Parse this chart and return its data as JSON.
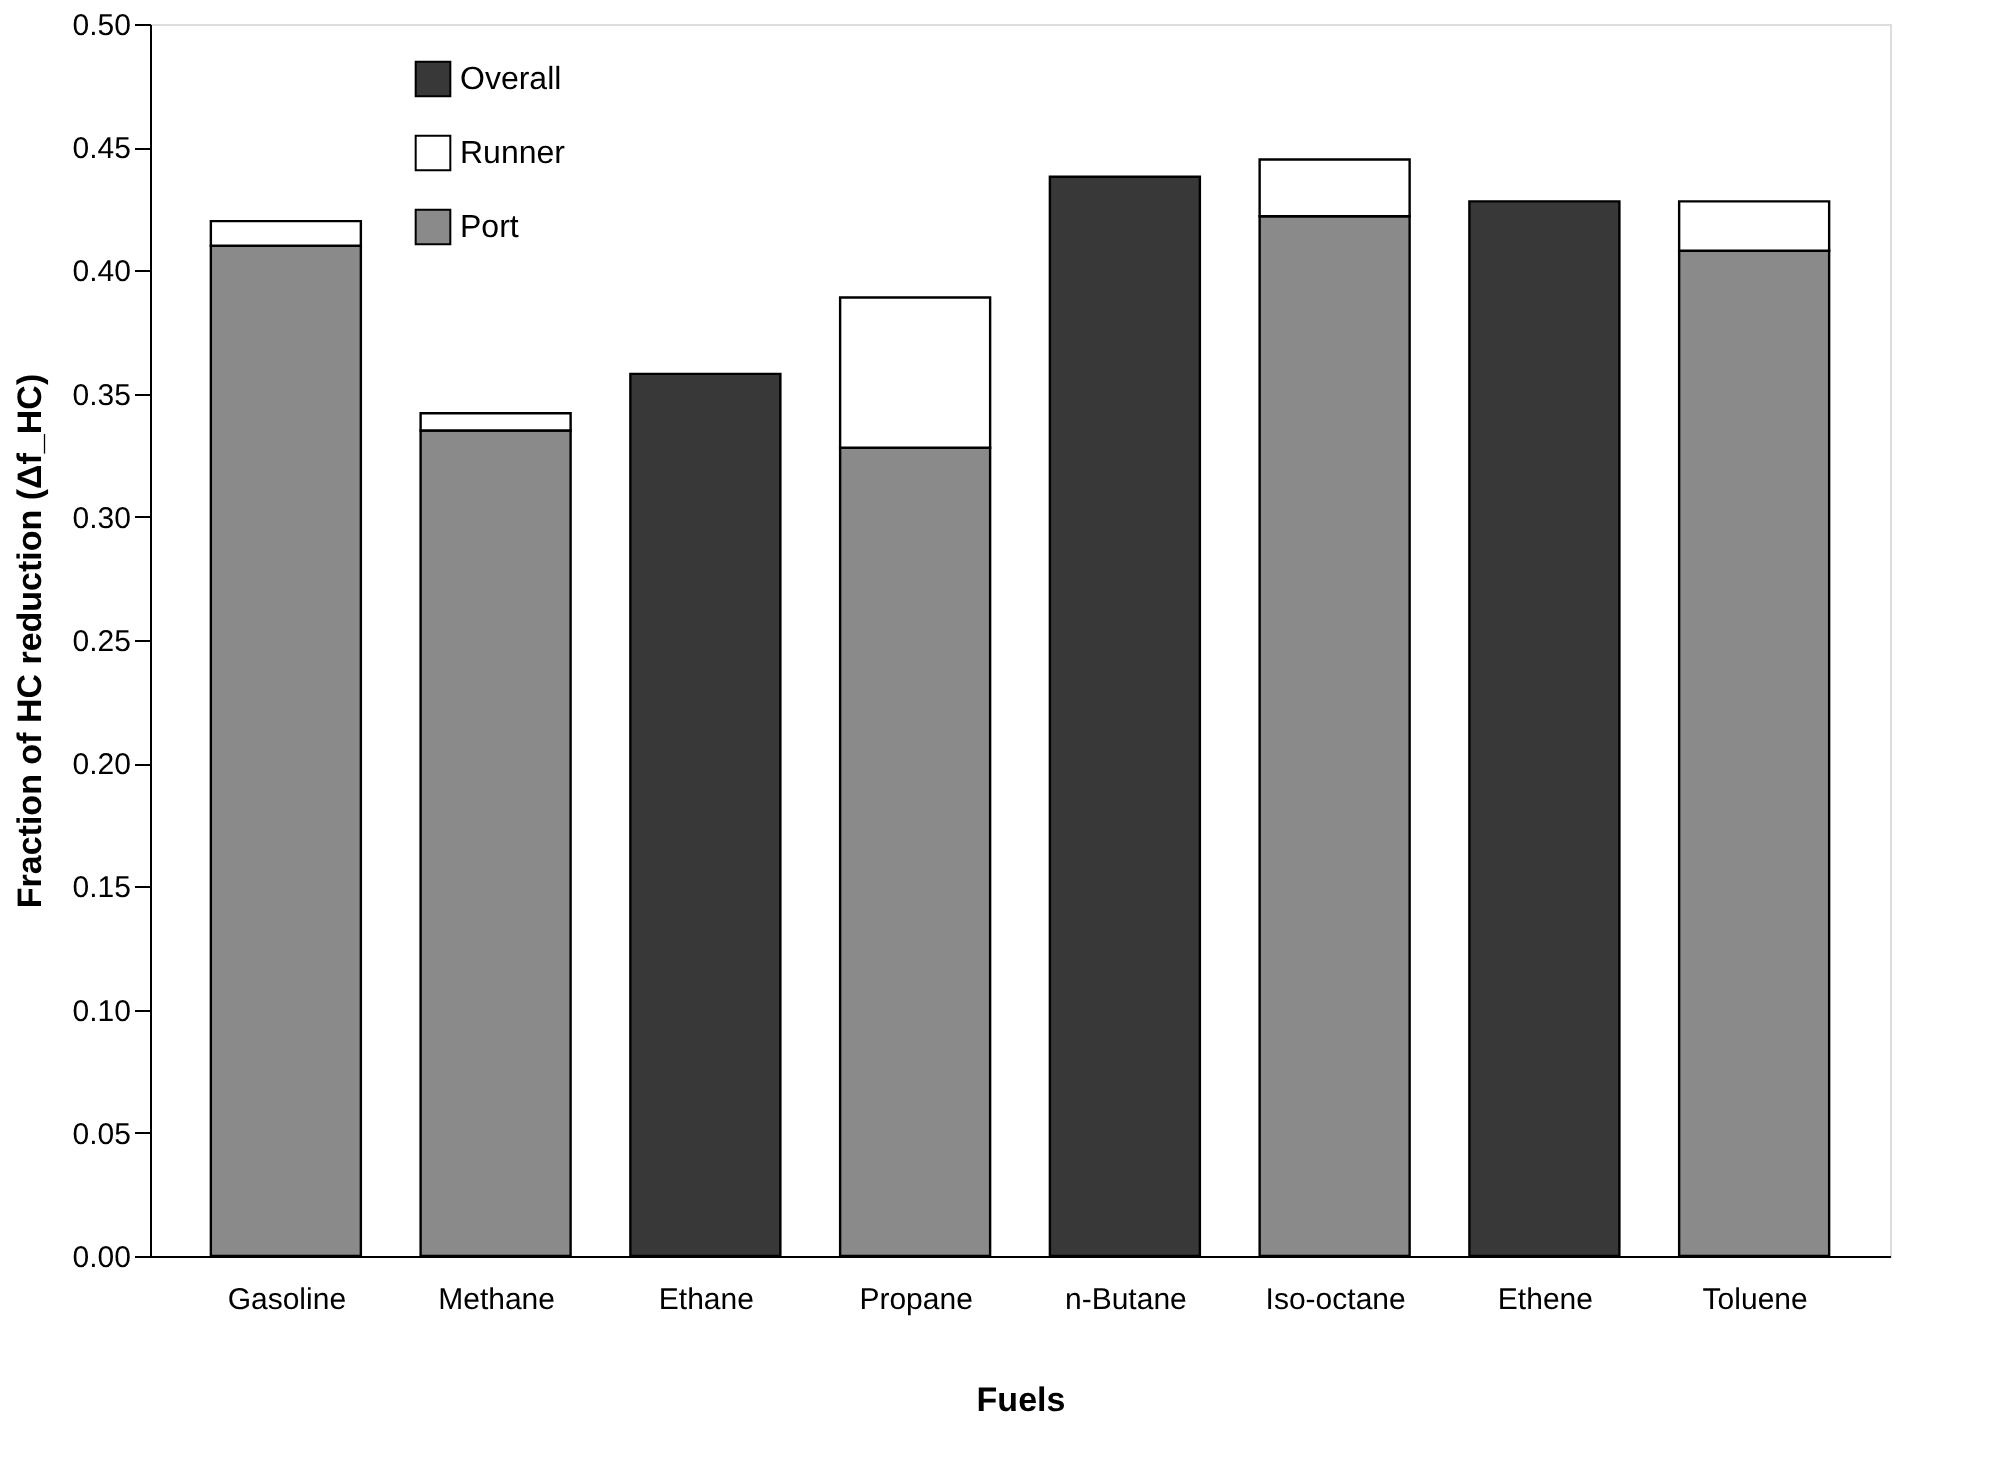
{
  "chart_data": {
    "type": "bar",
    "stacked": true,
    "xlabel": "Fuels",
    "ylabel": "Fraction of HC reduction (Δf_HC)",
    "categories": [
      "Gasoline",
      "Methane",
      "Ethane",
      "Propane",
      "n-Butane",
      "Iso-octane",
      "Ethene",
      "Toluene"
    ],
    "series": [
      {
        "name": "Port",
        "color": "#8a8a8a",
        "values": [
          0.41,
          0.335,
          null,
          0.328,
          null,
          0.422,
          null,
          0.408
        ]
      },
      {
        "name": "Runner",
        "color": "#ffffff",
        "values": [
          0.01,
          0.007,
          null,
          0.061,
          null,
          0.023,
          null,
          0.02
        ]
      },
      {
        "name": "Overall",
        "color": "#383838",
        "values": [
          null,
          null,
          0.358,
          null,
          0.438,
          null,
          0.428,
          null
        ]
      }
    ],
    "ylim": [
      0,
      0.5
    ],
    "yticks": [
      {
        "value": 0,
        "label": "0.00"
      },
      {
        "value": 0.05,
        "label": "0.05"
      },
      {
        "value": 0.1,
        "label": "0.10"
      },
      {
        "value": 0.15,
        "label": "0.15"
      },
      {
        "value": 0.2,
        "label": "0.20"
      },
      {
        "value": 0.25,
        "label": "0.25"
      },
      {
        "value": 0.3,
        "label": "0.30"
      },
      {
        "value": 0.35,
        "label": "0.35"
      },
      {
        "value": 0.4,
        "label": "0.40"
      },
      {
        "value": 0.45,
        "label": "0.45"
      },
      {
        "value": 0.5,
        "label": "0.50"
      }
    ],
    "grid": false,
    "legend": "top left"
  }
}
